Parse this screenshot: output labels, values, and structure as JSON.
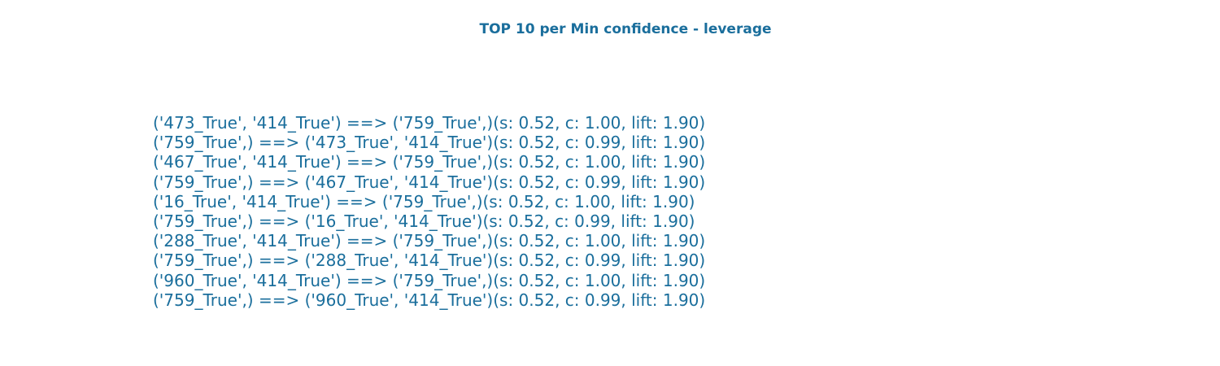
{
  "colors": {
    "text": "#1a6e9c",
    "background": "#ffffff"
  },
  "chart_data": {
    "type": "table",
    "title": "TOP 10 per Min confidence - leverage",
    "xlabel": "",
    "ylabel": "",
    "grid": false,
    "rows": [
      "('473_True', '414_True') ==> ('759_True',)(s: 0.52, c: 1.00, lift: 1.90)",
      "('759_True',) ==> ('473_True', '414_True')(s: 0.52, c: 0.99, lift: 1.90)",
      "('467_True', '414_True') ==> ('759_True',)(s: 0.52, c: 1.00, lift: 1.90)",
      "('759_True',) ==> ('467_True', '414_True')(s: 0.52, c: 0.99, lift: 1.90)",
      "('16_True', '414_True') ==> ('759_True',)(s: 0.52, c: 1.00, lift: 1.90)",
      "('759_True',) ==> ('16_True', '414_True')(s: 0.52, c: 0.99, lift: 1.90)",
      "('288_True', '414_True') ==> ('759_True',)(s: 0.52, c: 1.00, lift: 1.90)",
      "('759_True',) ==> ('288_True', '414_True')(s: 0.52, c: 0.99, lift: 1.90)",
      "('960_True', '414_True') ==> ('759_True',)(s: 0.52, c: 1.00, lift: 1.90)",
      "('759_True',) ==> ('960_True', '414_True')(s: 0.52, c: 0.99, lift: 1.90)"
    ]
  }
}
